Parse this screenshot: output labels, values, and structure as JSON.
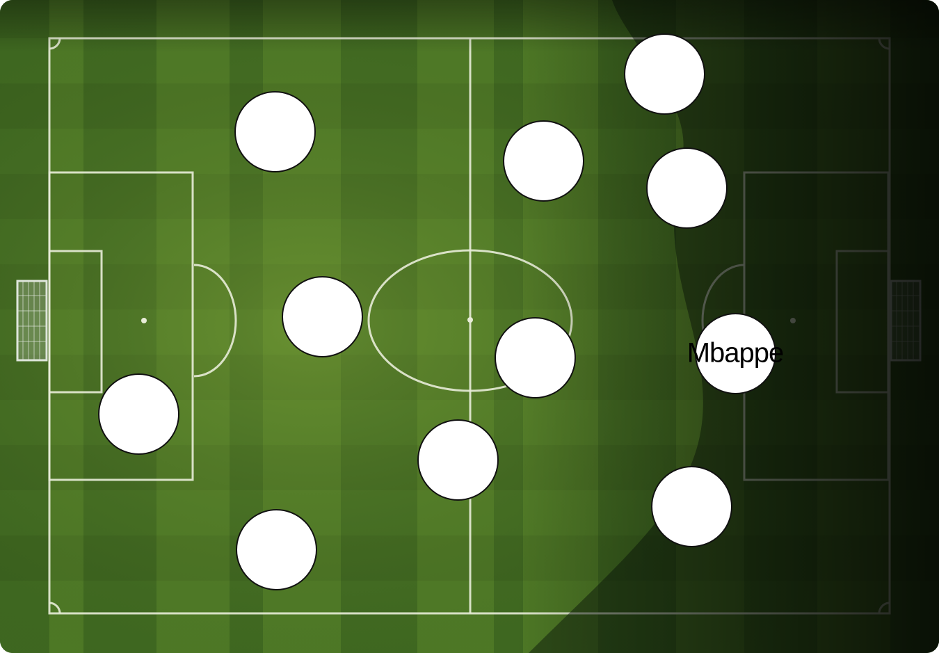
{
  "pitch": {
    "grass_light": "#5e8c2c",
    "grass_dark": "#3f6a20",
    "line_color": "#e8ecd8",
    "shadow_color": "#0b1a0a",
    "icons": [
      "goal-net-icon",
      "goal-net-icon"
    ]
  },
  "players": [
    {
      "label": ""
    },
    {
      "label": ""
    },
    {
      "label": ""
    },
    {
      "label": ""
    },
    {
      "label": ""
    },
    {
      "label": ""
    },
    {
      "label": ""
    },
    {
      "label": ""
    },
    {
      "label": ""
    },
    {
      "label": ""
    },
    {
      "label": "Mbappe"
    },
    {
      "label": ""
    }
  ],
  "token_color": "#ffffff",
  "token_border_color": "#111111"
}
